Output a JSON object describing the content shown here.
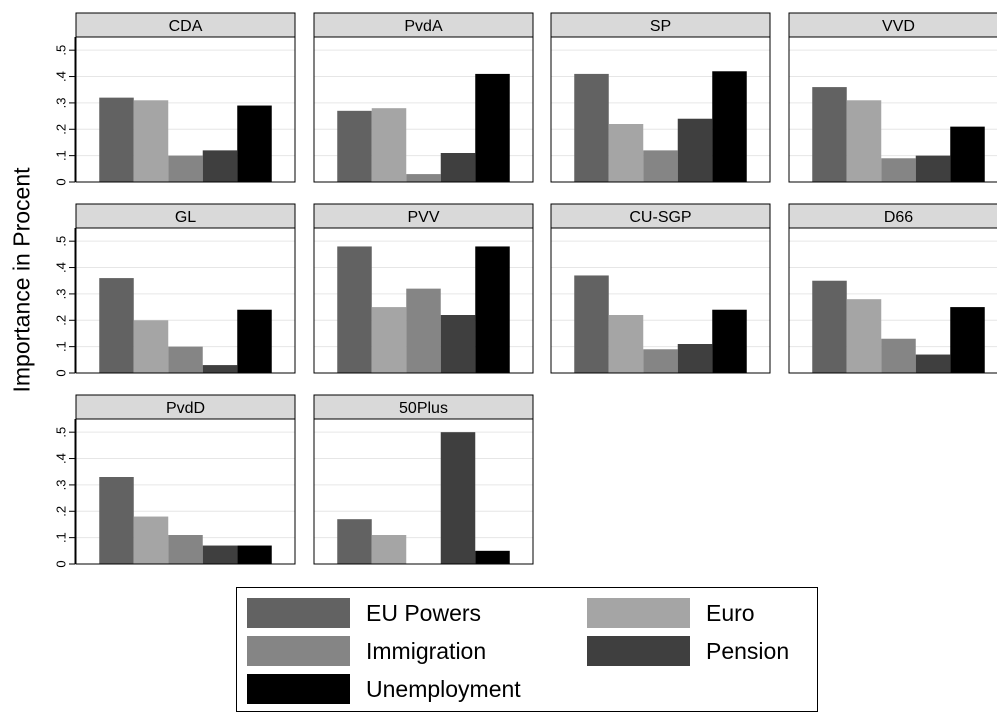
{
  "chart_data": {
    "type": "bar",
    "ylabel": "Importance in Procent",
    "ylim": [
      0,
      0.55
    ],
    "yticks": [
      0,
      0.1,
      0.2,
      0.3,
      0.4,
      0.5
    ],
    "ytick_labels": [
      "0",
      ".1",
      ".2",
      ".3",
      ".4",
      ".5"
    ],
    "grid": true,
    "legend_position": "bottom",
    "series": [
      {
        "name": "EU Powers",
        "color": "#626262"
      },
      {
        "name": "Euro",
        "color": "#a5a5a5"
      },
      {
        "name": "Immigration",
        "color": "#858585"
      },
      {
        "name": "Pension",
        "color": "#3f3f3f"
      },
      {
        "name": "Unemployment",
        "color": "#000000"
      }
    ],
    "panels": [
      {
        "title": "CDA",
        "values": [
          0.32,
          0.31,
          0.1,
          0.12,
          0.29
        ]
      },
      {
        "title": "PvdA",
        "values": [
          0.27,
          0.28,
          0.03,
          0.11,
          0.41
        ]
      },
      {
        "title": "SP",
        "values": [
          0.41,
          0.22,
          0.12,
          0.24,
          0.42
        ]
      },
      {
        "title": "VVD",
        "values": [
          0.36,
          0.31,
          0.09,
          0.1,
          0.21
        ]
      },
      {
        "title": "GL",
        "values": [
          0.36,
          0.2,
          0.1,
          0.03,
          0.24
        ]
      },
      {
        "title": "PVV",
        "values": [
          0.48,
          0.25,
          0.32,
          0.22,
          0.48
        ]
      },
      {
        "title": "CU-SGP",
        "values": [
          0.37,
          0.22,
          0.09,
          0.11,
          0.24
        ]
      },
      {
        "title": "D66",
        "values": [
          0.35,
          0.28,
          0.13,
          0.07,
          0.25
        ]
      },
      {
        "title": "PvdD",
        "values": [
          0.33,
          0.18,
          0.11,
          0.07,
          0.07
        ]
      },
      {
        "title": "50Plus",
        "values": [
          0.17,
          0.11,
          0.0,
          0.5,
          0.05
        ]
      }
    ]
  }
}
